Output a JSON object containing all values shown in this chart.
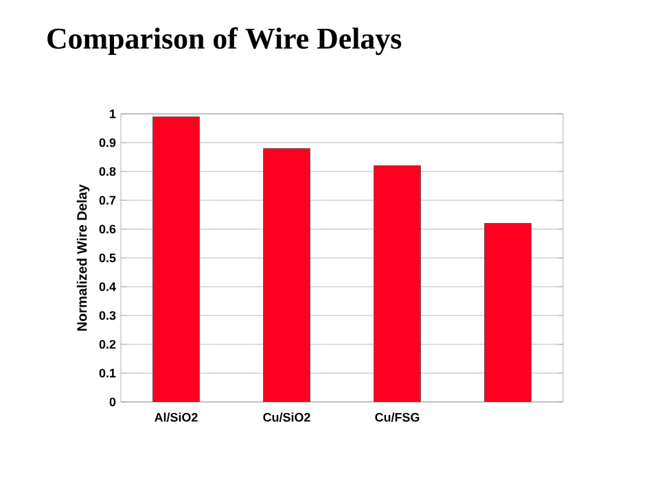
{
  "chart_data": {
    "type": "bar",
    "title": "Comparison of Wire Delays",
    "ylabel": "Normalized Wire Delay",
    "categories": [
      "Al/SiO2",
      "Cu/SiO2",
      "Cu/FSG",
      null
    ],
    "values": [
      0.99,
      0.88,
      0.82,
      0.62
    ],
    "color": "#ff0020",
    "ylim": [
      0,
      1
    ],
    "yticks": [
      0,
      0.1,
      0.2,
      0.3,
      0.4,
      0.5,
      0.6,
      0.7,
      0.8,
      0.9,
      1
    ],
    "grid": "y"
  }
}
